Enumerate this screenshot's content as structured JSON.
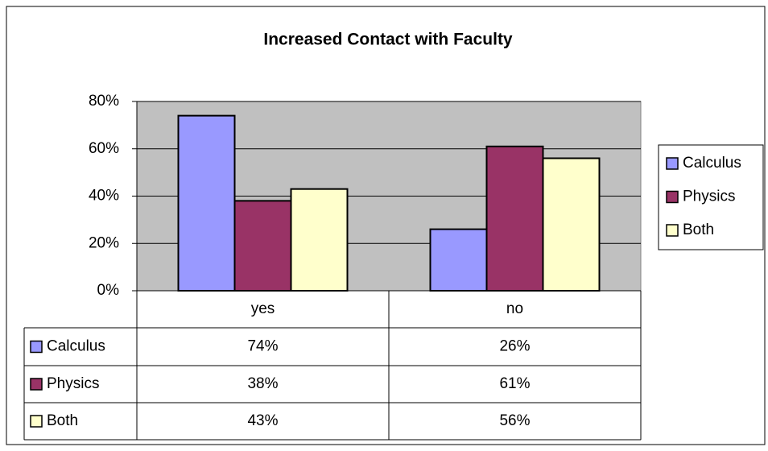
{
  "chart_data": {
    "type": "bar",
    "title": "Increased Contact with Faculty",
    "categories": [
      "yes",
      "no"
    ],
    "series": [
      {
        "name": "Calculus",
        "color": "#9999ff",
        "values": [
          74,
          26
        ],
        "value_labels": [
          "74%",
          "26%"
        ]
      },
      {
        "name": "Physics",
        "color": "#993366",
        "values": [
          38,
          61
        ],
        "value_labels": [
          "38%",
          "61%"
        ]
      },
      {
        "name": "Both",
        "color": "#ffffcc",
        "values": [
          43,
          56
        ],
        "value_labels": [
          "43%",
          "56%"
        ]
      }
    ],
    "ylim": [
      0,
      80
    ],
    "yticks": [
      {
        "value": 0,
        "label": "0%"
      },
      {
        "value": 20,
        "label": "20%"
      },
      {
        "value": 40,
        "label": "40%"
      },
      {
        "value": 60,
        "label": "60%"
      },
      {
        "value": 80,
        "label": "80%"
      }
    ],
    "grid": true,
    "legend": "right",
    "plot_background": "#c0c0c0"
  }
}
